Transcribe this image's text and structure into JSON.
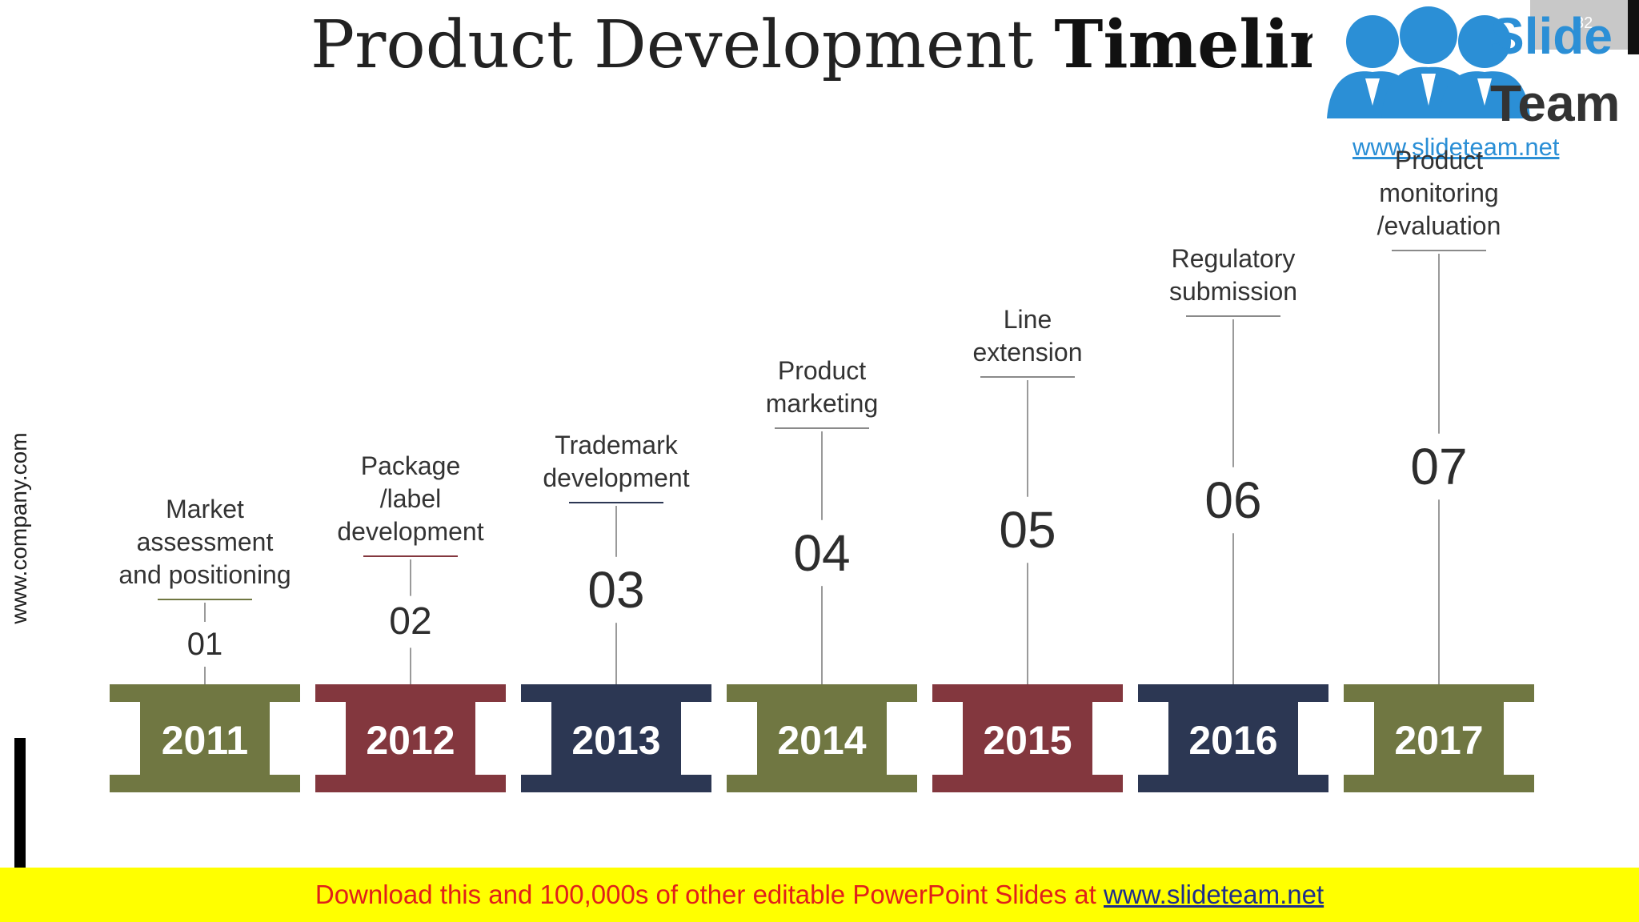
{
  "slide": {
    "title_regular": "Product Development",
    "title_bold": "Timeline",
    "slide_number": "32"
  },
  "logo": {
    "word1": "Slide",
    "word2": "Team",
    "url": "www.slideteam.net"
  },
  "side_url": "www.company.com",
  "colors": {
    "olive": "#707742",
    "maroon": "#83373e",
    "navy": "#2c3753",
    "footer_bg": "#ffff00",
    "footer_text": "#e0201a",
    "footer_link": "#1d2d8c",
    "logo_blue": "#2b8fd6"
  },
  "timeline": [
    {
      "year": "2011",
      "number": "01",
      "label": [
        "Market",
        "assessment",
        "and positioning"
      ],
      "color": "#707742"
    },
    {
      "year": "2012",
      "number": "02",
      "label": [
        "Package",
        "/label",
        "development"
      ],
      "color": "#83373e"
    },
    {
      "year": "2013",
      "number": "03",
      "label": [
        "Trademark",
        "development"
      ],
      "color": "#2c3753"
    },
    {
      "year": "2014",
      "number": "04",
      "label": [
        "Product",
        "marketing"
      ],
      "color": "#707742"
    },
    {
      "year": "2015",
      "number": "05",
      "label": [
        "Line",
        "extension"
      ],
      "color": "#83373e"
    },
    {
      "year": "2016",
      "number": "06",
      "label": [
        "Regulatory",
        "submission"
      ],
      "color": "#2c3753"
    },
    {
      "year": "2017",
      "number": "07",
      "label": [
        "Product",
        "monitoring",
        "/evaluation"
      ],
      "color": "#707742"
    }
  ],
  "footer": {
    "text": "Download this and 100,000s of other editable PowerPoint Slides at",
    "link": "www.slideteam.net"
  }
}
